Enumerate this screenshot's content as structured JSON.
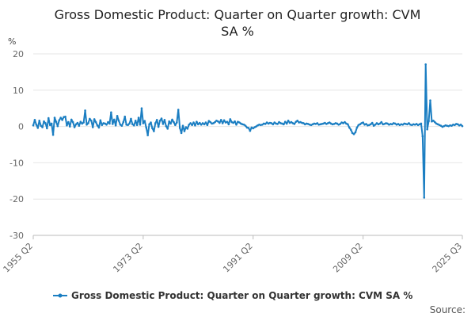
{
  "chart_data": {
    "type": "line",
    "title_lines": [
      "Gross Domestic Product: Quarter on Quarter growth: CVM",
      "SA %"
    ],
    "ylabel": "%",
    "ylim": [
      -30,
      20
    ],
    "yticks": [
      "20",
      "10",
      "0",
      "-10",
      "-20",
      "-30"
    ],
    "x_tick_labels": [
      "1955 Q2",
      "1973 Q2",
      "1991 Q2",
      "2009 Q2",
      "2025 Q3"
    ],
    "x_tick_index": [
      0,
      72,
      144,
      216,
      281
    ],
    "source_label": "Source:",
    "series": [
      {
        "name": "Gross Domestic Product: Quarter on Quarter growth: CVM SA %",
        "color": "#1b7ec2",
        "values": [
          0.3,
          1.8,
          0.5,
          -0.4,
          1.6,
          0.2,
          -0.2,
          1.4,
          0.9,
          -0.5,
          2.3,
          0.4,
          0.8,
          -2.3,
          2.4,
          1.3,
          0.1,
          1.7,
          2.4,
          1.8,
          2.6,
          2.7,
          0.3,
          1.2,
          0.0,
          1.9,
          1.2,
          -0.2,
          0.6,
          1.0,
          0.2,
          1.3,
          0.8,
          1.1,
          4.4,
          0.5,
          0.9,
          2.1,
          1.6,
          -0.2,
          2.0,
          1.2,
          0.3,
          -0.3,
          1.7,
          0.4,
          0.9,
          0.8,
          0.5,
          1.2,
          0.8,
          3.9,
          0.7,
          1.9,
          0.3,
          2.9,
          1.6,
          0.5,
          0.2,
          1.2,
          2.7,
          0.5,
          0.4,
          0.8,
          2.1,
          0.6,
          0.3,
          1.6,
          0.4,
          2.4,
          0.5,
          5.0,
          0.9,
          1.5,
          -0.3,
          -2.4,
          0.6,
          1.1,
          -0.5,
          -1.3,
          0.9,
          1.8,
          -0.1,
          1.6,
          2.2,
          0.7,
          1.8,
          0.1,
          -0.6,
          1.4,
          0.8,
          1.9,
          1.2,
          0.4,
          1.1,
          4.6,
          -0.4,
          -1.8,
          0.2,
          -1.3,
          -0.2,
          -0.6,
          0.5,
          0.9,
          0.4,
          1.1,
          0.3,
          1.3,
          0.6,
          1.0,
          0.5,
          0.9,
          0.6,
          1.1,
          0.4,
          1.5,
          1.2,
          0.8,
          0.9,
          1.2,
          1.6,
          1.4,
          1.0,
          1.8,
          0.9,
          1.7,
          1.1,
          1.3,
          0.6,
          2.0,
          1.2,
          1.0,
          1.4,
          0.5,
          1.3,
          1.1,
          0.8,
          0.6,
          0.5,
          0.2,
          -0.3,
          -0.4,
          -1.2,
          -0.3,
          -0.5,
          -0.2,
          0.0,
          0.3,
          0.5,
          0.4,
          0.5,
          0.8,
          0.7,
          1.1,
          0.8,
          1.0,
          0.9,
          0.6,
          1.1,
          0.8,
          0.7,
          1.2,
          0.9,
          0.8,
          0.6,
          1.3,
          0.8,
          1.6,
          1.0,
          1.2,
          0.9,
          0.7,
          1.3,
          1.6,
          1.1,
          1.2,
          1.0,
          0.9,
          0.6,
          0.8,
          0.7,
          0.5,
          0.4,
          0.6,
          0.8,
          0.7,
          0.9,
          0.5,
          0.6,
          0.7,
          0.8,
          1.0,
          0.7,
          0.9,
          1.1,
          0.8,
          0.6,
          0.7,
          0.9,
          0.8,
          0.5,
          0.7,
          1.1,
          0.9,
          1.2,
          0.8,
          0.6,
          -0.3,
          -0.9,
          -1.8,
          -2.1,
          -1.6,
          -0.3,
          0.4,
          0.6,
          0.9,
          1.1,
          0.5,
          0.7,
          0.3,
          0.4,
          0.6,
          1.0,
          0.2,
          0.5,
          0.9,
          0.6,
          0.8,
          1.2,
          0.6,
          0.7,
          0.9,
          0.8,
          0.5,
          0.7,
          0.6,
          0.9,
          0.8,
          0.5,
          0.7,
          0.4,
          0.6,
          0.5,
          0.8,
          0.7,
          0.6,
          0.9,
          0.5,
          0.4,
          0.6,
          0.5,
          0.7,
          0.4,
          0.6,
          0.8,
          -2.7,
          -19.6,
          17.1,
          -0.8,
          1.5,
          7.2,
          1.4,
          1.6,
          1.2,
          0.8,
          0.6,
          0.4,
          0.2,
          -0.1,
          0.1,
          0.3,
          0.2,
          0.1,
          0.3,
          0.2,
          0.5,
          0.4,
          0.7,
          0.6,
          0.3,
          0.5,
          0.1
        ]
      }
    ]
  }
}
